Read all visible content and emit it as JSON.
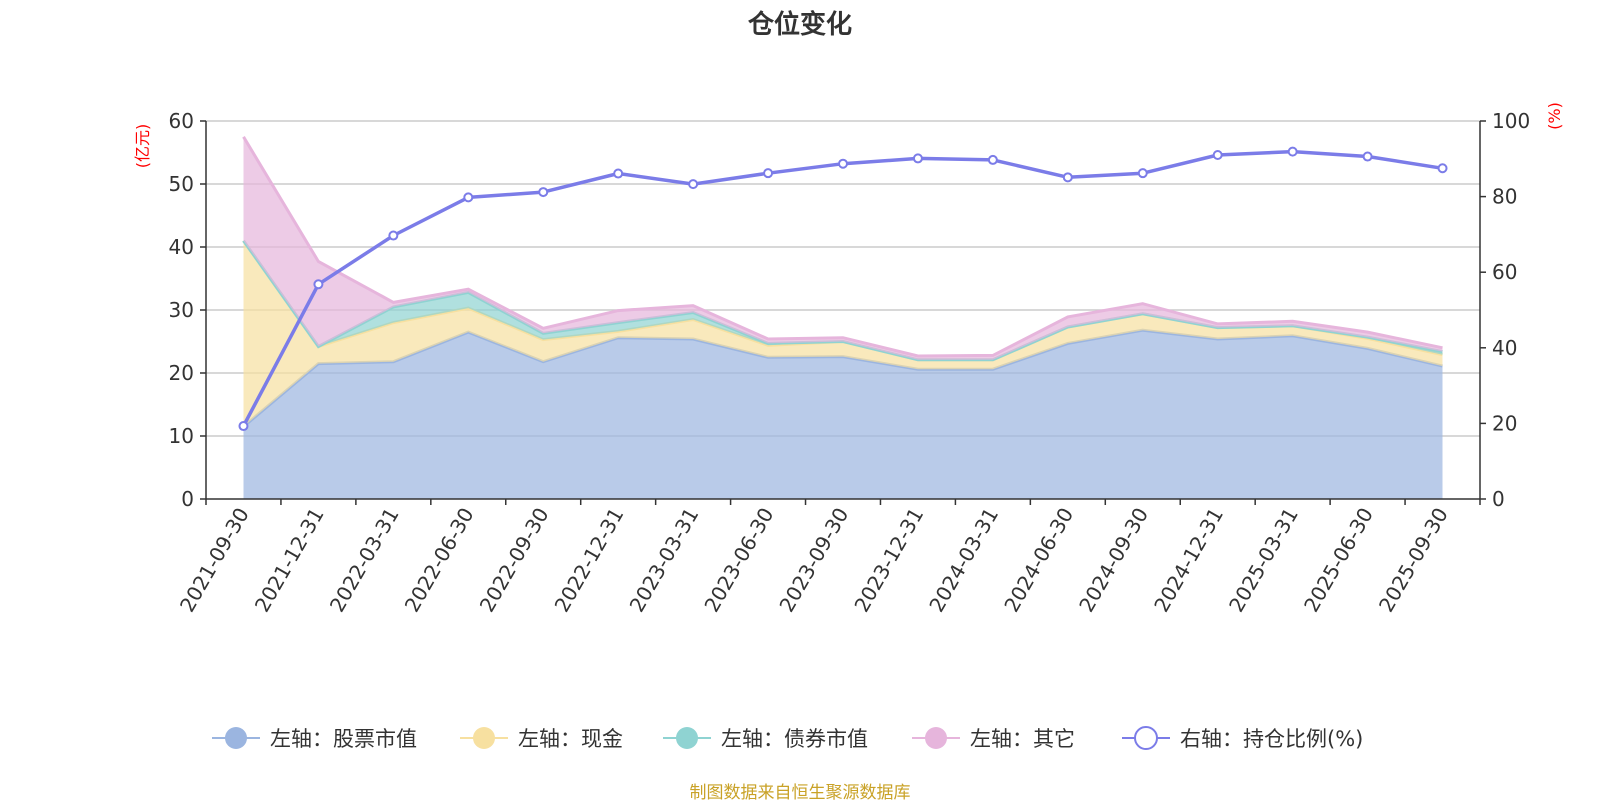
{
  "chart_data": {
    "type": "area",
    "title": "仓位变化",
    "left_axis": {
      "unit": "(亿元)",
      "ylim": [
        0,
        60
      ],
      "ticks": [
        0,
        10,
        20,
        30,
        40,
        50,
        60
      ]
    },
    "right_axis": {
      "unit": "(%)",
      "ylim": [
        0,
        100
      ],
      "ticks": [
        0,
        20,
        40,
        60,
        80,
        100
      ]
    },
    "categories": [
      "2021-09-30",
      "2021-12-31",
      "2022-03-31",
      "2022-06-30",
      "2022-09-30",
      "2022-12-31",
      "2023-03-31",
      "2023-06-30",
      "2023-09-30",
      "2023-12-31",
      "2024-03-31",
      "2024-06-30",
      "2024-09-30",
      "2024-12-31",
      "2025-03-31",
      "2025-06-30",
      "2025-09-30"
    ],
    "series": [
      {
        "name": "左轴：股票市值",
        "axis": "left",
        "color": "#9bb5e0",
        "values": [
          11.5,
          21.5,
          21.8,
          26.5,
          21.8,
          25.6,
          25.4,
          22.5,
          22.6,
          20.6,
          20.6,
          24.7,
          26.8,
          25.4,
          25.9,
          23.9,
          21.1
        ]
      },
      {
        "name": "左轴：现金",
        "axis": "left",
        "color": "#f7e0a0",
        "values": [
          29.5,
          2.7,
          6.2,
          3.8,
          3.5,
          1.0,
          3.1,
          1.9,
          2.4,
          1.5,
          1.5,
          2.6,
          2.6,
          1.8,
          1.6,
          1.6,
          1.8
        ]
      },
      {
        "name": "左轴：债券市值",
        "axis": "left",
        "color": "#8fd3d2",
        "values": [
          0,
          0,
          2.5,
          2.5,
          1.0,
          1.4,
          1.1,
          0.3,
          0,
          0,
          0,
          0,
          0,
          0,
          0,
          0.2,
          0.5
        ]
      },
      {
        "name": "左轴：其它",
        "axis": "left",
        "color": "#e6b5dc",
        "values": [
          16.5,
          13.5,
          0.7,
          0.5,
          0.8,
          1.9,
          1.1,
          0.7,
          0.6,
          0.6,
          0.7,
          1.6,
          1.6,
          0.6,
          0.7,
          0.8,
          0.6
        ]
      },
      {
        "name": "右轴：持仓比例(%)",
        "axis": "right",
        "color": "#7b7ce8",
        "type": "line",
        "values": [
          19.3,
          56.8,
          69.7,
          79.8,
          81.2,
          86.1,
          83.3,
          86.2,
          88.7,
          90.1,
          89.7,
          85.1,
          86.2,
          91.0,
          91.9,
          90.6,
          87.5
        ]
      }
    ]
  },
  "source_text": "制图数据来自恒生聚源数据库"
}
